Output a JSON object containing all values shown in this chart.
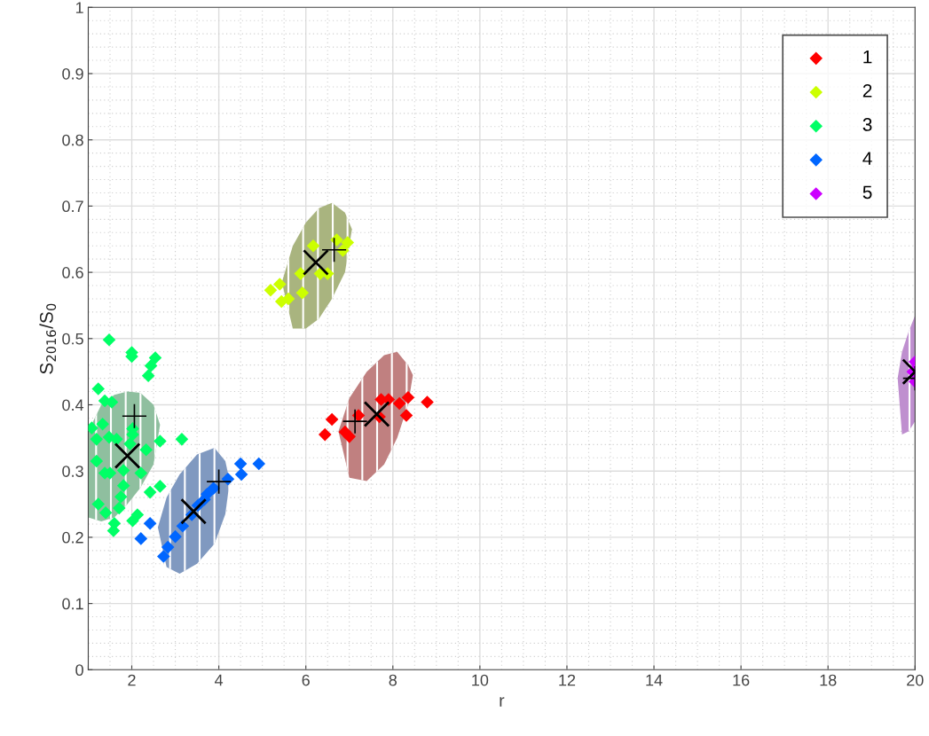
{
  "chart_data": {
    "type": "scatter",
    "xlabel": "r",
    "ylabel": "S$_{2016}$/S$_{0}$",
    "xlim": [
      1,
      20
    ],
    "ylim": [
      0,
      1
    ],
    "xticks": [
      {
        "value": 1,
        "label": null
      },
      2,
      4,
      6,
      8,
      10,
      12,
      14,
      16,
      18,
      20
    ],
    "yticks": [
      0,
      0.1,
      0.2,
      0.3,
      0.4,
      0.5,
      0.6,
      0.7,
      0.8,
      0.9,
      1
    ],
    "grid": true,
    "legend": "top right",
    "series": [
      {
        "type": "area",
        "color": "#c08080",
        "x": [
          6.75,
          7.0,
          7.4,
          7.8,
          8.1,
          8.35,
          8.46,
          8.35,
          8.1,
          7.8,
          7.4,
          7.0
        ],
        "values": [
          0.36,
          0.41,
          0.45,
          0.475,
          0.48,
          0.46,
          0.445,
          0.4,
          0.35,
          0.31,
          0.285,
          0.29
        ]
      },
      {
        "type": "area",
        "color": "#a9b47f",
        "x": [
          5.45,
          5.7,
          6.0,
          6.3,
          6.6,
          6.9,
          7.06,
          6.9,
          6.6,
          6.3,
          6.0,
          5.7
        ],
        "values": [
          0.585,
          0.64,
          0.675,
          0.697,
          0.705,
          0.69,
          0.665,
          0.6,
          0.56,
          0.53,
          0.515,
          0.515
        ]
      },
      {
        "type": "area",
        "color": "#8fbf9f",
        "x": [
          1.0,
          1.3,
          1.6,
          1.9,
          2.2,
          2.5,
          2.65,
          2.5,
          2.2,
          1.9,
          1.6,
          1.3,
          1.0
        ],
        "values": [
          0.36,
          0.4,
          0.415,
          0.42,
          0.418,
          0.4,
          0.37,
          0.31,
          0.275,
          0.25,
          0.23,
          0.224,
          0.23
        ]
      },
      {
        "type": "area",
        "color": "#8099c0",
        "x": [
          2.6,
          2.8,
          3.1,
          3.5,
          3.9,
          4.15,
          4.25,
          4.15,
          3.9,
          3.5,
          3.1,
          2.8
        ],
        "values": [
          0.215,
          0.26,
          0.295,
          0.325,
          0.335,
          0.315,
          0.285,
          0.235,
          0.19,
          0.16,
          0.145,
          0.155
        ]
      },
      {
        "type": "area",
        "color": "#bf8fcf",
        "x": [
          19.6,
          19.7,
          19.85,
          20.0,
          20.0,
          19.85,
          19.7
        ],
        "values": [
          0.44,
          0.48,
          0.51,
          0.535,
          0.375,
          0.36,
          0.355
        ]
      },
      {
        "name": "1",
        "color": "#ff0000",
        "marker": "diamond",
        "x": [
          6.6,
          6.44,
          6.9,
          7.0,
          7.21,
          7.73,
          7.9,
          8.15,
          8.35,
          8.31,
          8.79,
          7.69
        ],
        "values": [
          0.378,
          0.355,
          0.359,
          0.352,
          0.384,
          0.408,
          0.408,
          0.402,
          0.411,
          0.384,
          0.404,
          0.382
        ]
      },
      {
        "name": "2",
        "color": "#ccff00",
        "marker": "diamond",
        "x": [
          6.17,
          6.71,
          6.96,
          6.85,
          5.88,
          6.33,
          6.5,
          5.19,
          5.4,
          5.44,
          5.6,
          5.92
        ],
        "values": [
          0.64,
          0.649,
          0.645,
          0.633,
          0.598,
          0.598,
          0.598,
          0.573,
          0.582,
          0.556,
          0.56,
          0.569
        ]
      },
      {
        "name": "3",
        "color": "#00ff66",
        "marker": "diamond",
        "x": [
          1.48,
          2.0,
          2.0,
          2.54,
          2.44,
          2.38,
          1.23,
          1.38,
          1.54,
          1.08,
          1.33,
          1.19,
          1.48,
          1.65,
          2.02,
          2.02,
          2.65,
          3.15,
          2.33,
          1.19,
          1.38,
          1.5,
          2.21,
          1.81,
          1.81,
          1.75,
          1.71,
          2.65,
          2.42,
          1.23,
          1.4,
          1.6,
          1.58,
          2.02,
          2.13,
          1.96
        ],
        "values": [
          0.498,
          0.479,
          0.473,
          0.471,
          0.459,
          0.444,
          0.424,
          0.406,
          0.404,
          0.365,
          0.371,
          0.348,
          0.351,
          0.348,
          0.364,
          0.355,
          0.345,
          0.348,
          0.332,
          0.315,
          0.297,
          0.297,
          0.297,
          0.301,
          0.278,
          0.261,
          0.244,
          0.277,
          0.268,
          0.25,
          0.237,
          0.221,
          0.21,
          0.225,
          0.234,
          0.341
        ]
      },
      {
        "name": "4",
        "color": "#0066ff",
        "marker": "diamond",
        "x": [
          4.92,
          4.5,
          4.52,
          4.21,
          3.88,
          3.73,
          3.52,
          3.38,
          3.17,
          3.0,
          2.83,
          2.73,
          2.21,
          2.42,
          3.67
        ],
        "values": [
          0.311,
          0.311,
          0.295,
          0.288,
          0.274,
          0.265,
          0.248,
          0.234,
          0.217,
          0.201,
          0.185,
          0.171,
          0.198,
          0.221,
          0.257
        ]
      },
      {
        "name": "5",
        "color": "#cc00ff",
        "marker": "diamond",
        "x": [
          20.0,
          19.95,
          20.0
        ],
        "values": [
          0.465,
          0.45,
          0.435
        ]
      },
      {
        "color": "#000000",
        "marker": "cross",
        "x": [
          7.63,
          6.23,
          1.9,
          3.42,
          20.0
        ],
        "values": [
          0.386,
          0.615,
          0.323,
          0.239,
          0.45
        ]
      },
      {
        "color": "#000000",
        "x": [
          7.13,
          6.65,
          2.06,
          4.0,
          20.0
        ],
        "values": [
          0.375,
          0.634,
          0.383,
          0.284,
          0.44
        ]
      }
    ]
  }
}
